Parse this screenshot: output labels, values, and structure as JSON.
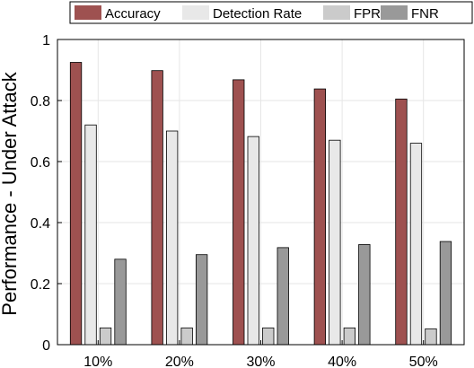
{
  "chart_data": {
    "type": "bar",
    "categories": [
      "10%",
      "20%",
      "30%",
      "40%",
      "50%"
    ],
    "series": [
      {
        "name": "Accuracy",
        "values": [
          0.925,
          0.898,
          0.868,
          0.838,
          0.805
        ],
        "color": "#9e5150"
      },
      {
        "name": "Detection Rate",
        "values": [
          0.72,
          0.7,
          0.682,
          0.67,
          0.66
        ],
        "color": "#e8e8e8"
      },
      {
        "name": "FPR",
        "values": [
          0.055,
          0.055,
          0.055,
          0.055,
          0.052
        ],
        "color": "#cbcbcb"
      },
      {
        "name": "FNR",
        "values": [
          0.28,
          0.295,
          0.318,
          0.328,
          0.338
        ],
        "color": "#999999"
      }
    ],
    "title": "",
    "xlabel": "",
    "ylabel": "Performance - Under Attack",
    "ylim": [
      0,
      1
    ],
    "yticks": [
      "0",
      "0.2",
      "0.4",
      "0.6",
      "0.8",
      "1"
    ],
    "grid": true,
    "legend_position": "top"
  }
}
